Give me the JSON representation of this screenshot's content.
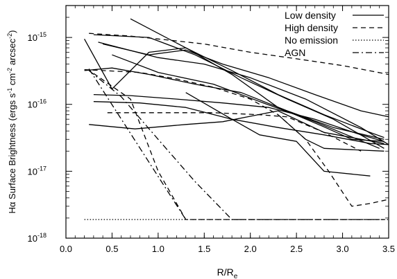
{
  "chart_data": {
    "type": "line",
    "title": "",
    "xlabel": "R/R",
    "xlabel_sub": "e",
    "ylabel": "Hα Surface Brightness (ergs s",
    "ylabel_sup1": "-1",
    "ylabel_mid": " cm",
    "ylabel_sup2": "-2",
    "ylabel_end": " arcsec",
    "ylabel_sup3": "-2",
    "ylabel_close": ")",
    "xlim": [
      0.0,
      3.5
    ],
    "ylim": [
      1e-18,
      3e-15
    ],
    "yscale": "log",
    "grid": false,
    "legend_position": "top-right",
    "x_ticks": [
      "0.0",
      "0.5",
      "1.0",
      "1.5",
      "2.0",
      "2.5",
      "3.0",
      "3.5"
    ],
    "y_ticks": [
      {
        "base": "10",
        "exp": "-18"
      },
      {
        "base": "10",
        "exp": "-17"
      },
      {
        "base": "10",
        "exp": "-16"
      },
      {
        "base": "10",
        "exp": "-15"
      }
    ],
    "legend": [
      {
        "label": "Low density",
        "style": "solid"
      },
      {
        "label": "High density",
        "style": "dashed"
      },
      {
        "label": "No emission",
        "style": "dotted"
      },
      {
        "label": "AGN",
        "style": "dashdot"
      }
    ],
    "series": [
      {
        "style": "solid",
        "x": [
          0.2,
          0.5,
          0.9,
          1.3,
          1.8,
          2.3,
          2.8,
          3.1,
          3.45
        ],
        "y": [
          9.5e-16,
          1.7e-16,
          6e-16,
          7e-16,
          2.8e-16,
          9e-17,
          4.6e-17,
          3e-17,
          2.8e-17
        ]
      },
      {
        "style": "solid",
        "x": [
          0.3,
          0.9,
          1.4,
          1.9,
          2.4,
          2.9,
          3.45
        ],
        "y": [
          1.1e-15,
          1e-15,
          5.5e-16,
          2.5e-16,
          1.2e-16,
          6e-17,
          2.2e-17
        ]
      },
      {
        "style": "solid",
        "x": [
          0.35,
          1.0,
          1.5,
          2.0,
          2.6,
          3.2,
          3.5
        ],
        "y": [
          8.5e-16,
          5e-16,
          4e-16,
          2.5e-16,
          1.2e-16,
          4.5e-17,
          2.5e-17
        ]
      },
      {
        "style": "solid",
        "x": [
          0.7,
          1.3,
          1.8,
          2.3,
          2.8,
          3.3,
          3.45
        ],
        "y": [
          1.9e-15,
          7e-16,
          3.2e-16,
          1.4e-16,
          7e-17,
          3.8e-17,
          3.2e-17
        ]
      },
      {
        "style": "solid",
        "x": [
          0.5,
          1.0,
          1.6,
          2.1,
          2.7,
          3.4
        ],
        "y": [
          5.5e-16,
          3e-16,
          2e-16,
          1.1e-16,
          5.5e-17,
          2.2e-17
        ]
      },
      {
        "style": "solid",
        "x": [
          0.4,
          0.9,
          1.3,
          1.7,
          2.2,
          2.7,
          3.2,
          3.5
        ],
        "y": [
          8e-16,
          5.5e-16,
          6.5e-16,
          4e-16,
          2.5e-16,
          1.4e-16,
          8e-17,
          6.5e-17
        ]
      },
      {
        "style": "solid",
        "x": [
          0.2,
          0.5,
          0.9,
          1.4,
          1.9,
          2.4,
          2.9,
          3.45
        ],
        "y": [
          3.2e-16,
          3.5e-16,
          2.8e-16,
          2e-16,
          1.5e-16,
          8e-17,
          4.5e-17,
          3e-17
        ]
      },
      {
        "style": "solid",
        "x": [
          0.3,
          0.7,
          1.2,
          1.7,
          2.2,
          2.7,
          3.2,
          3.45
        ],
        "y": [
          1.4e-16,
          1.35e-16,
          1.2e-16,
          1.05e-16,
          9e-17,
          6e-17,
          3.5e-17,
          2.8e-17
        ]
      },
      {
        "style": "solid",
        "x": [
          0.3,
          0.8,
          1.3,
          1.8,
          2.3,
          2.8,
          3.3,
          3.5
        ],
        "y": [
          1.1e-16,
          1.05e-16,
          9e-17,
          6e-17,
          4.5e-17,
          3.5e-17,
          2.6e-17,
          2.5e-17
        ]
      },
      {
        "style": "solid",
        "x": [
          1.3,
          1.8,
          2.1,
          2.5,
          2.8,
          3.3
        ],
        "y": [
          1.5e-16,
          6e-17,
          3.5e-17,
          2.8e-17,
          1e-17,
          8.5e-18
        ]
      },
      {
        "style": "solid",
        "x": [
          0.25,
          0.75,
          1.3,
          1.7,
          2.3,
          2.8,
          3.45
        ],
        "y": [
          5e-17,
          4.3e-17,
          5e-17,
          5.5e-17,
          8e-17,
          3.8e-17,
          2.6e-17
        ]
      },
      {
        "style": "solid",
        "x": [
          2.3,
          2.6,
          2.8,
          3.1,
          3.45
        ],
        "y": [
          7e-17,
          3e-17,
          2.2e-17,
          2.1e-17,
          2e-17
        ]
      },
      {
        "style": "dashed",
        "x": [
          0.25,
          0.7,
          1.0,
          1.5,
          2.0,
          2.5,
          3.0,
          3.5
        ],
        "y": [
          1.15e-15,
          1.05e-15,
          9.5e-16,
          8e-16,
          6e-16,
          4.8e-16,
          3.8e-16,
          2.8e-16
        ]
      },
      {
        "style": "dashed",
        "x": [
          0.2,
          0.4,
          0.8,
          1.2,
          1.6,
          2.0,
          2.3,
          2.6,
          2.85,
          3.1,
          3.3,
          3.5
        ],
        "y": [
          3.3e-16,
          3.2e-16,
          3e-16,
          2.4e-16,
          1.8e-16,
          1.2e-16,
          7e-17,
          3e-17,
          1e-17,
          3e-18,
          3.3e-18,
          3.8e-18
        ]
      },
      {
        "style": "dashed",
        "x": [
          0.45,
          1.0,
          1.6,
          2.1,
          2.4,
          2.8,
          3.2
        ],
        "y": [
          7.5e-17,
          7.5e-17,
          7.5e-17,
          7e-17,
          6.5e-17,
          3.8e-17,
          2e-17
        ]
      },
      {
        "style": "dashed",
        "x": [
          0.3,
          0.7,
          1.0,
          1.3,
          3.45
        ],
        "y": [
          2.9e-16,
          1.2e-16,
          1e-17,
          1.9e-18,
          1.9e-18
        ]
      },
      {
        "style": "dotted",
        "x": [
          0.2,
          3.5
        ],
        "y": [
          1.9e-18,
          1.9e-18
        ]
      },
      {
        "style": "dashdot",
        "x": [
          0.25,
          0.6,
          1.0,
          1.4,
          1.8,
          3.45
        ],
        "y": [
          3.2e-16,
          1.3e-16,
          3e-17,
          7e-18,
          1.9e-18,
          1.9e-18
        ]
      },
      {
        "style": "dashdot",
        "x": [
          0.25,
          1.3
        ],
        "y": [
          3.4e-16,
          1.9e-18
        ]
      }
    ]
  }
}
